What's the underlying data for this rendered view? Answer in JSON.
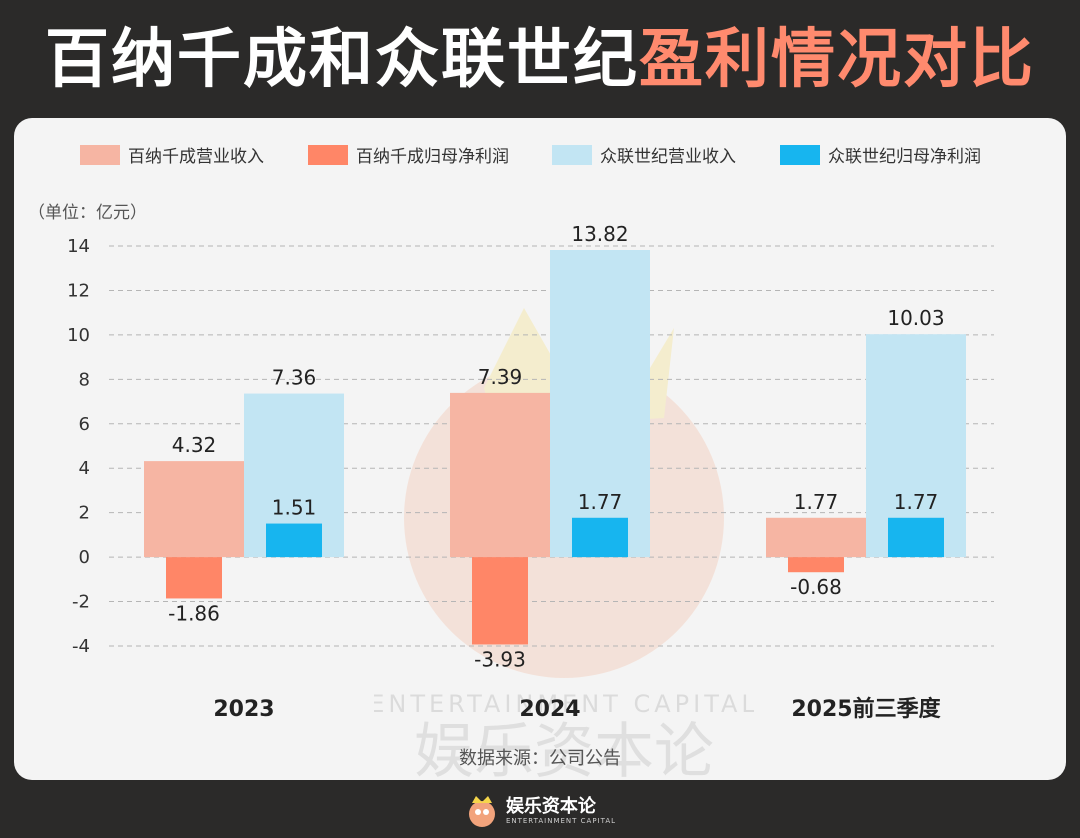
{
  "title": {
    "main": "百纳千成和众联世纪",
    "highlight": "盈利情况对比"
  },
  "unit_label": "（单位：亿元）",
  "source": "数据来源：公司公告",
  "footer": {
    "brand": "娱乐资本论",
    "sub": "ENTERTAINMENT CAPITAL"
  },
  "watermark": {
    "en": "ENTERTAINMENT CAPITAL",
    "cn": "娱乐资本论"
  },
  "colors": {
    "baina_revenue": "#f6b5a3",
    "baina_profit": "#ff8667",
    "zhonglian_revenue": "#c2e5f3",
    "zhonglian_profit": "#17b5ef",
    "background": "#2b2a29",
    "card": "#f4f4f4",
    "title_highlight": "#ff8a6e"
  },
  "chart_data": {
    "type": "bar",
    "categories": [
      "2023",
      "2024",
      "2025前三季度"
    ],
    "series": [
      {
        "name": "百纳千成营业收入",
        "values": [
          4.32,
          7.39,
          1.77
        ],
        "color": "#f6b5a3"
      },
      {
        "name": "百纳千成归母净利润",
        "values": [
          -1.86,
          -3.93,
          -0.68
        ],
        "color": "#ff8667"
      },
      {
        "name": "众联世纪营业收入",
        "values": [
          7.36,
          13.82,
          10.03
        ],
        "color": "#c2e5f3"
      },
      {
        "name": "众联世纪归母净利润",
        "values": [
          1.51,
          1.77,
          1.77
        ],
        "color": "#17b5ef"
      }
    ],
    "data_labels": [
      [
        "4.32",
        "7.39",
        "1.77"
      ],
      [
        "-1.86",
        "-3.93",
        "-0.68"
      ],
      [
        "7.36",
        "13.82",
        "10.03"
      ],
      [
        "1.51",
        "1.77",
        "1.77"
      ]
    ],
    "ylim": [
      -4,
      14
    ],
    "yticks": [
      "-4",
      "-2",
      "0",
      "2",
      "4",
      "6",
      "8",
      "10",
      "12",
      "14"
    ],
    "ytick_values": [
      -4,
      -2,
      0,
      2,
      4,
      6,
      8,
      10,
      12,
      14
    ],
    "grid": true,
    "legend_position": "top"
  }
}
